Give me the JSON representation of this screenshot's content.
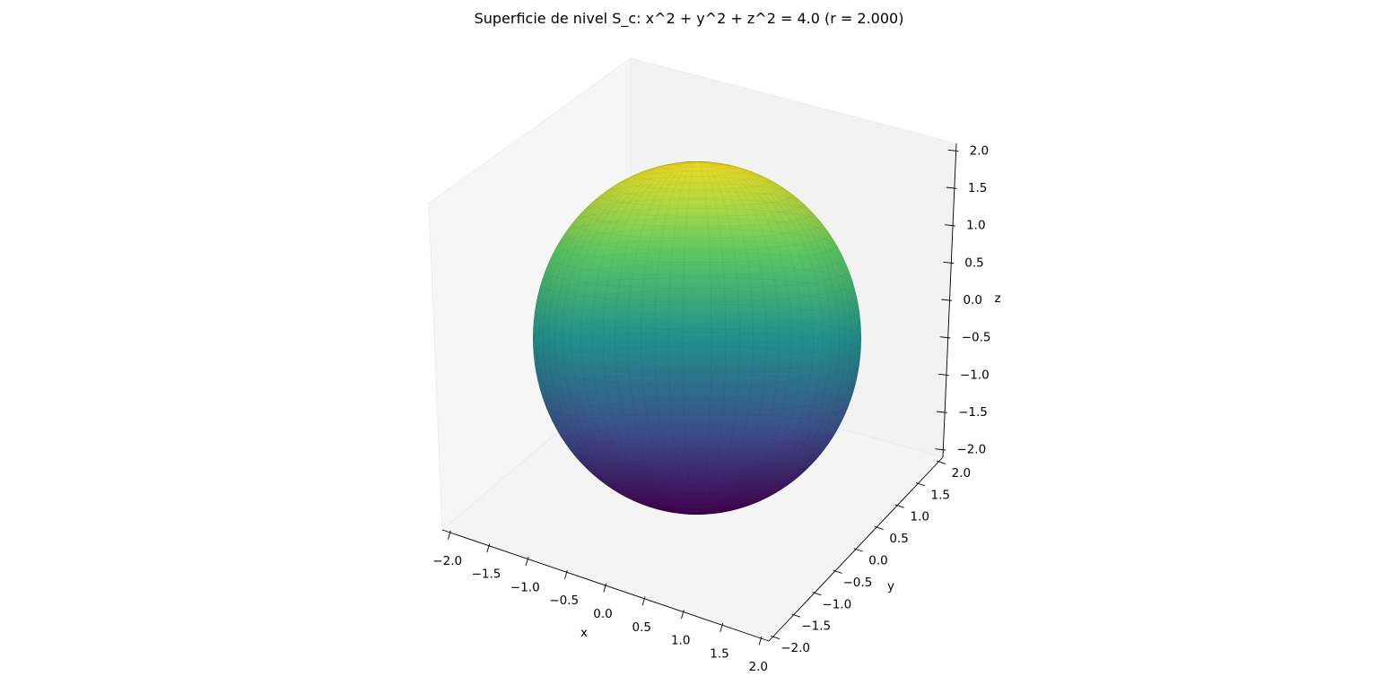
{
  "chart_data": {
    "type": "surface3d",
    "title": "Superficie de nivel S_c: x^2 + y^2 + z^2 = 4.0 (r = 2.000)",
    "surface": {
      "equation": "x^2 + y^2 + z^2 = 4.0",
      "level_c": 4.0,
      "radius": 2.0,
      "center": [
        0,
        0,
        0
      ],
      "colormap": "viridis",
      "color_by": "z",
      "colormap_stops": [
        "#440154",
        "#3b528b",
        "#21918c",
        "#5ec962",
        "#fde725"
      ]
    },
    "axes": {
      "x": {
        "label": "x",
        "range": [
          -2.1,
          2.1
        ],
        "ticks": [
          -2.0,
          -1.5,
          -1.0,
          -0.5,
          0.0,
          0.5,
          1.0,
          1.5,
          2.0
        ],
        "tick_labels": [
          "−2.0",
          "−1.5",
          "−1.0",
          "−0.5",
          "0.0",
          "0.5",
          "1.0",
          "1.5",
          "2.0"
        ]
      },
      "y": {
        "label": "y",
        "range": [
          -2.1,
          2.1
        ],
        "ticks": [
          -2.0,
          -1.5,
          -1.0,
          -0.5,
          0.0,
          0.5,
          1.0,
          1.5,
          2.0
        ],
        "tick_labels": [
          "−2.0",
          "−1.5",
          "−1.0",
          "−0.5",
          "0.0",
          "0.5",
          "1.0",
          "1.5",
          "2.0"
        ]
      },
      "z": {
        "label": "z",
        "range": [
          -2.1,
          2.1
        ],
        "ticks": [
          -2.0,
          -1.5,
          -1.0,
          -0.5,
          0.0,
          0.5,
          1.0,
          1.5,
          2.0
        ],
        "tick_labels": [
          "−2.0",
          "−1.5",
          "−1.0",
          "−0.5",
          "0.0",
          "0.5",
          "1.0",
          "1.5",
          "2.0"
        ]
      }
    },
    "grid": false,
    "legend": "none",
    "pane_colors": [
      "#f2f2f2",
      "#f6f6f6",
      "#f4f4f4"
    ]
  }
}
